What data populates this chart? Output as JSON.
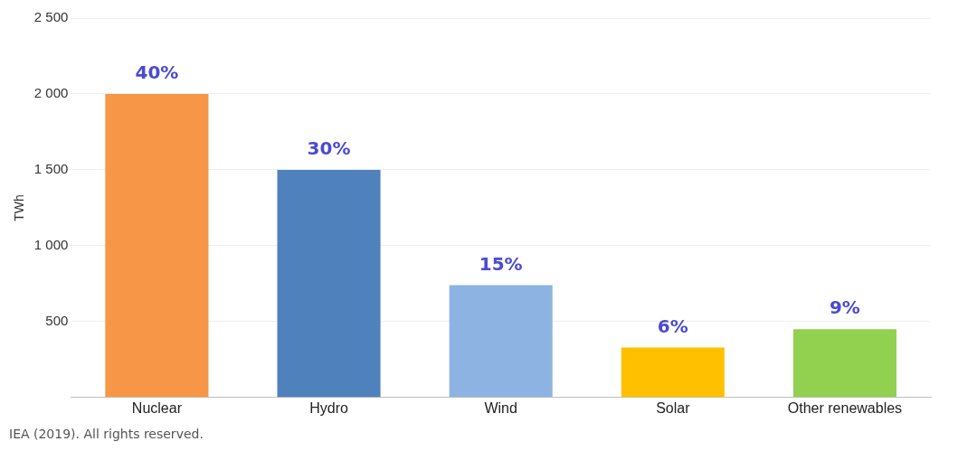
{
  "chart_data": {
    "type": "bar",
    "ylabel": "TWh",
    "categories": [
      "Nuclear",
      "Hydro",
      "Wind",
      "Solar",
      "Other renewables"
    ],
    "values": [
      2000,
      1500,
      740,
      330,
      450
    ],
    "colors": [
      "#f79646",
      "#4f81bd",
      "#8db3e2",
      "#ffc000",
      "#92d050"
    ],
    "ylim": [
      0,
      2500
    ],
    "yticks": [
      {
        "value": 0,
        "label": null
      },
      {
        "value": 500,
        "label": "500"
      },
      {
        "value": 1000,
        "label": "1 000"
      },
      {
        "value": 1500,
        "label": "1 500"
      },
      {
        "value": 2000,
        "label": "2 000"
      },
      {
        "value": 2500,
        "label": "2 500"
      }
    ],
    "grid": "y",
    "annotations": [
      {
        "text": "40%",
        "x": "Nuclear",
        "y": 2000
      },
      {
        "text": "30%",
        "x": "Hydro",
        "y": 1500
      },
      {
        "text": "15%",
        "x": "Wind",
        "y": 740
      },
      {
        "text": "6%",
        "x": "Solar",
        "y": 330
      },
      {
        "text": "9%",
        "x": "Other renewables",
        "y": 450
      },
      "IEA (2019). All rights reserved."
    ]
  }
}
